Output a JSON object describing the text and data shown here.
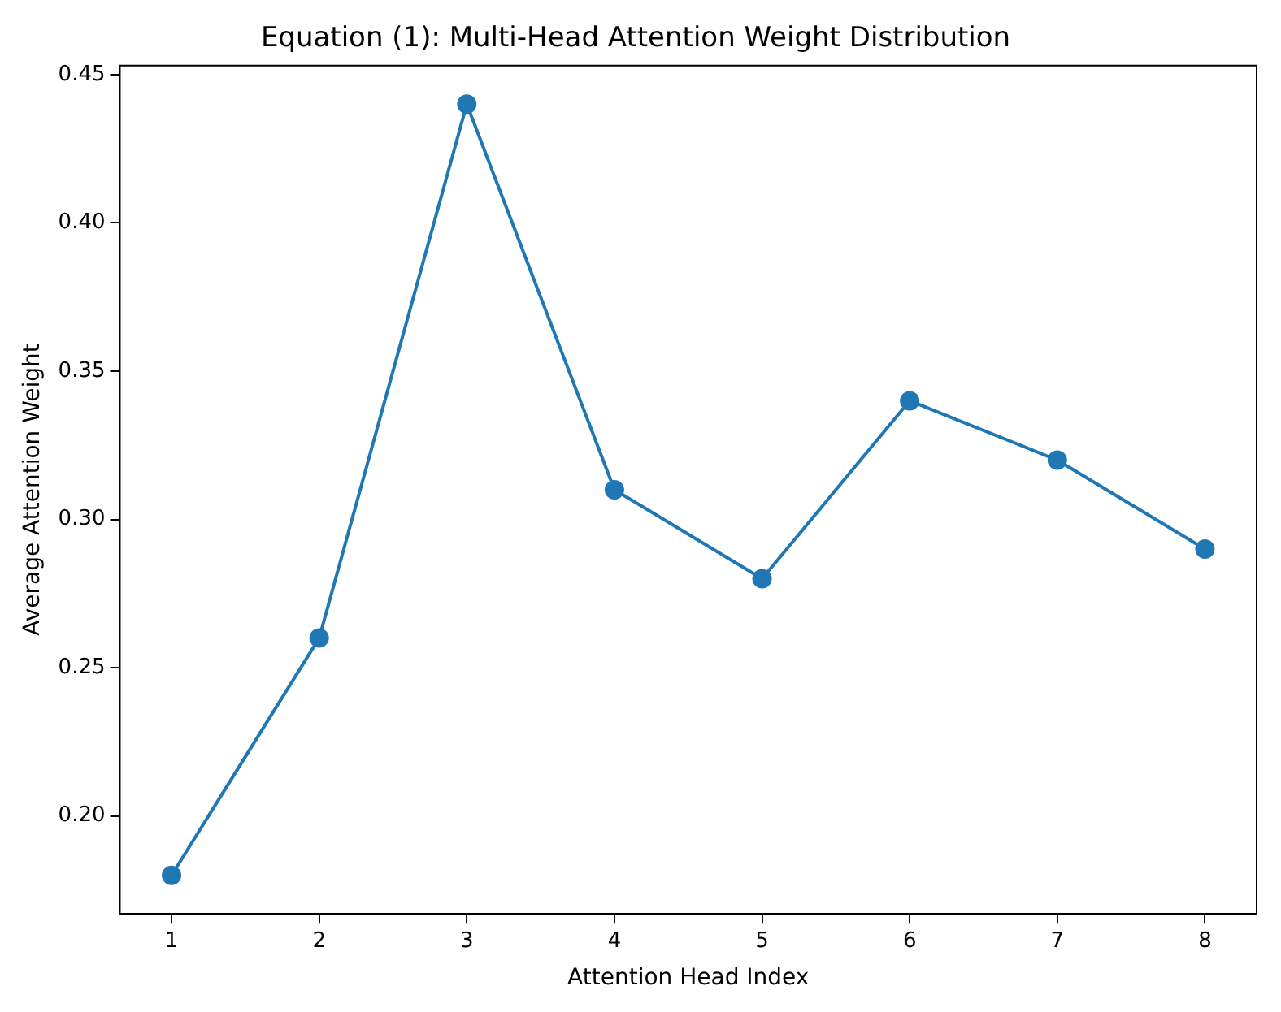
{
  "chart_data": {
    "type": "line",
    "title": "Equation (1): Multi-Head Attention Weight Distribution",
    "xlabel": "Attention Head Index",
    "ylabel": "Average Attention Weight",
    "x": [
      1,
      2,
      3,
      4,
      5,
      6,
      7,
      8
    ],
    "series": [
      {
        "color": "#1f77b4",
        "values": [
          0.18,
          0.26,
          0.44,
          0.31,
          0.28,
          0.34,
          0.32,
          0.29
        ]
      }
    ],
    "xlim": [
      0.65,
      8.35
    ],
    "xticks": [
      1,
      2,
      3,
      4,
      5,
      6,
      7,
      8
    ],
    "ylim": [
      0.167,
      0.453
    ],
    "yticks": [
      {
        "value": 0.2,
        "label": "0.20"
      },
      {
        "value": 0.25,
        "label": "0.25"
      },
      {
        "value": 0.3,
        "label": "0.30"
      },
      {
        "value": 0.35,
        "label": "0.35"
      },
      {
        "value": 0.4,
        "label": "0.40"
      },
      {
        "value": 0.45,
        "label": "0.45"
      }
    ],
    "grid": false,
    "legend": false,
    "marker": "circle",
    "line_style": "solid"
  }
}
